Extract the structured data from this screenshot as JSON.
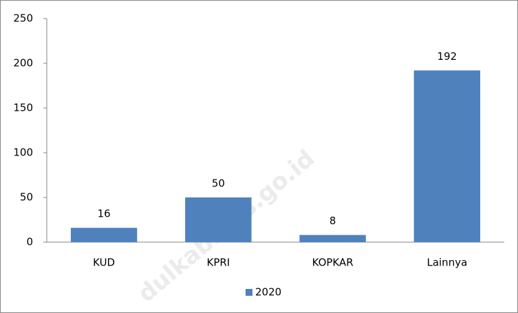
{
  "chart_data": {
    "type": "bar",
    "categories": [
      "KUD",
      "KPRI",
      "KOPKAR",
      "Lainnya"
    ],
    "series": [
      {
        "name": "2020",
        "color": "#4f81bd",
        "values": [
          16,
          50,
          8,
          192
        ]
      }
    ],
    "ylim": [
      0,
      250
    ],
    "yticks": [
      0,
      50,
      100,
      150,
      200,
      250
    ],
    "legend": "bottom",
    "watermark": "dulkab.bps.go.id"
  }
}
